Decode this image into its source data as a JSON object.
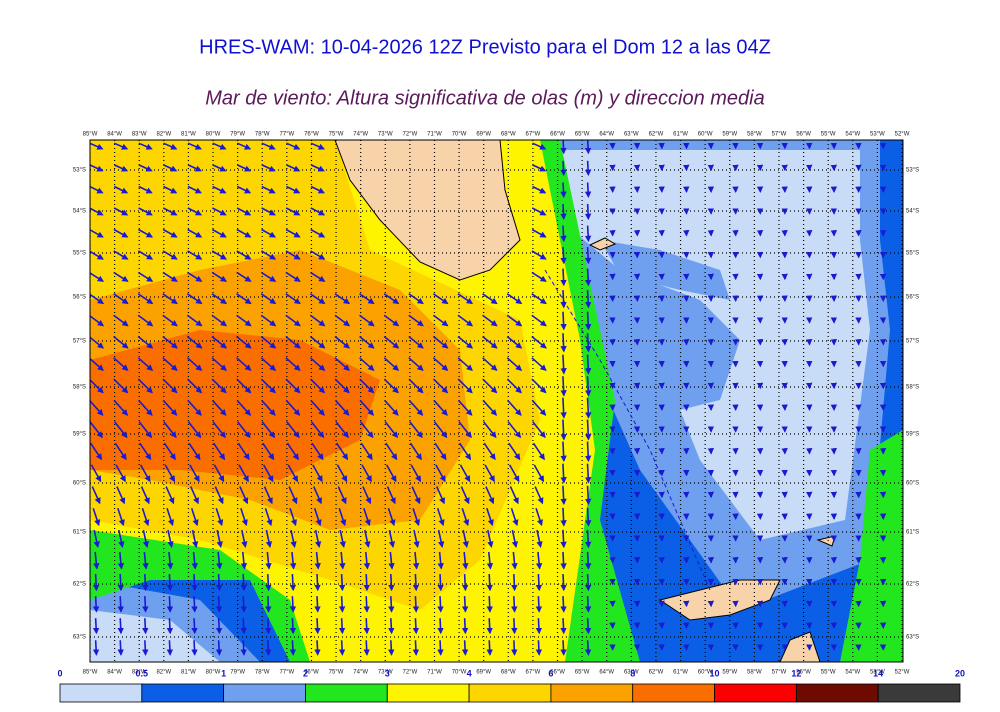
{
  "header": {
    "title": "HRES-WAM: 10-04-2026 12Z Previsto para el Dom 12 a las 04Z",
    "subtitle": "Mar de viento: Altura significativa de olas (m) y direccion media"
  },
  "map": {
    "longitude_labels": [
      "85°W",
      "84°W",
      "83°W",
      "82°W",
      "81°W",
      "80°W",
      "79°W",
      "78°W",
      "77°W",
      "76°W",
      "75°W",
      "74°W",
      "73°W",
      "72°W",
      "71°W",
      "70°W",
      "69°W",
      "68°W",
      "67°W",
      "66°W",
      "65°W",
      "64°W",
      "63°W",
      "62°W",
      "61°W",
      "60°W",
      "59°W",
      "58°W",
      "57°W",
      "56°W",
      "55°W",
      "54°W",
      "53°W",
      "52°W"
    ],
    "latitude_labels": [
      "53°S",
      "54°S",
      "55°S",
      "56°S",
      "57°S",
      "58°S",
      "59°S",
      "60°S",
      "61°S",
      "62°S",
      "63°S"
    ]
  },
  "colorbar": {
    "labels": [
      0,
      0.5,
      1,
      2,
      3,
      4,
      6,
      8,
      10,
      12,
      14,
      20
    ],
    "colors": [
      "#c8dcf8",
      "#0b5fe6",
      "#6fa0f0",
      "#22e61e",
      "#fff400",
      "#fdd600",
      "#fca200",
      "#fa6e00",
      "#fa0000",
      "#6e0a00",
      "#3a3a3a"
    ]
  }
}
